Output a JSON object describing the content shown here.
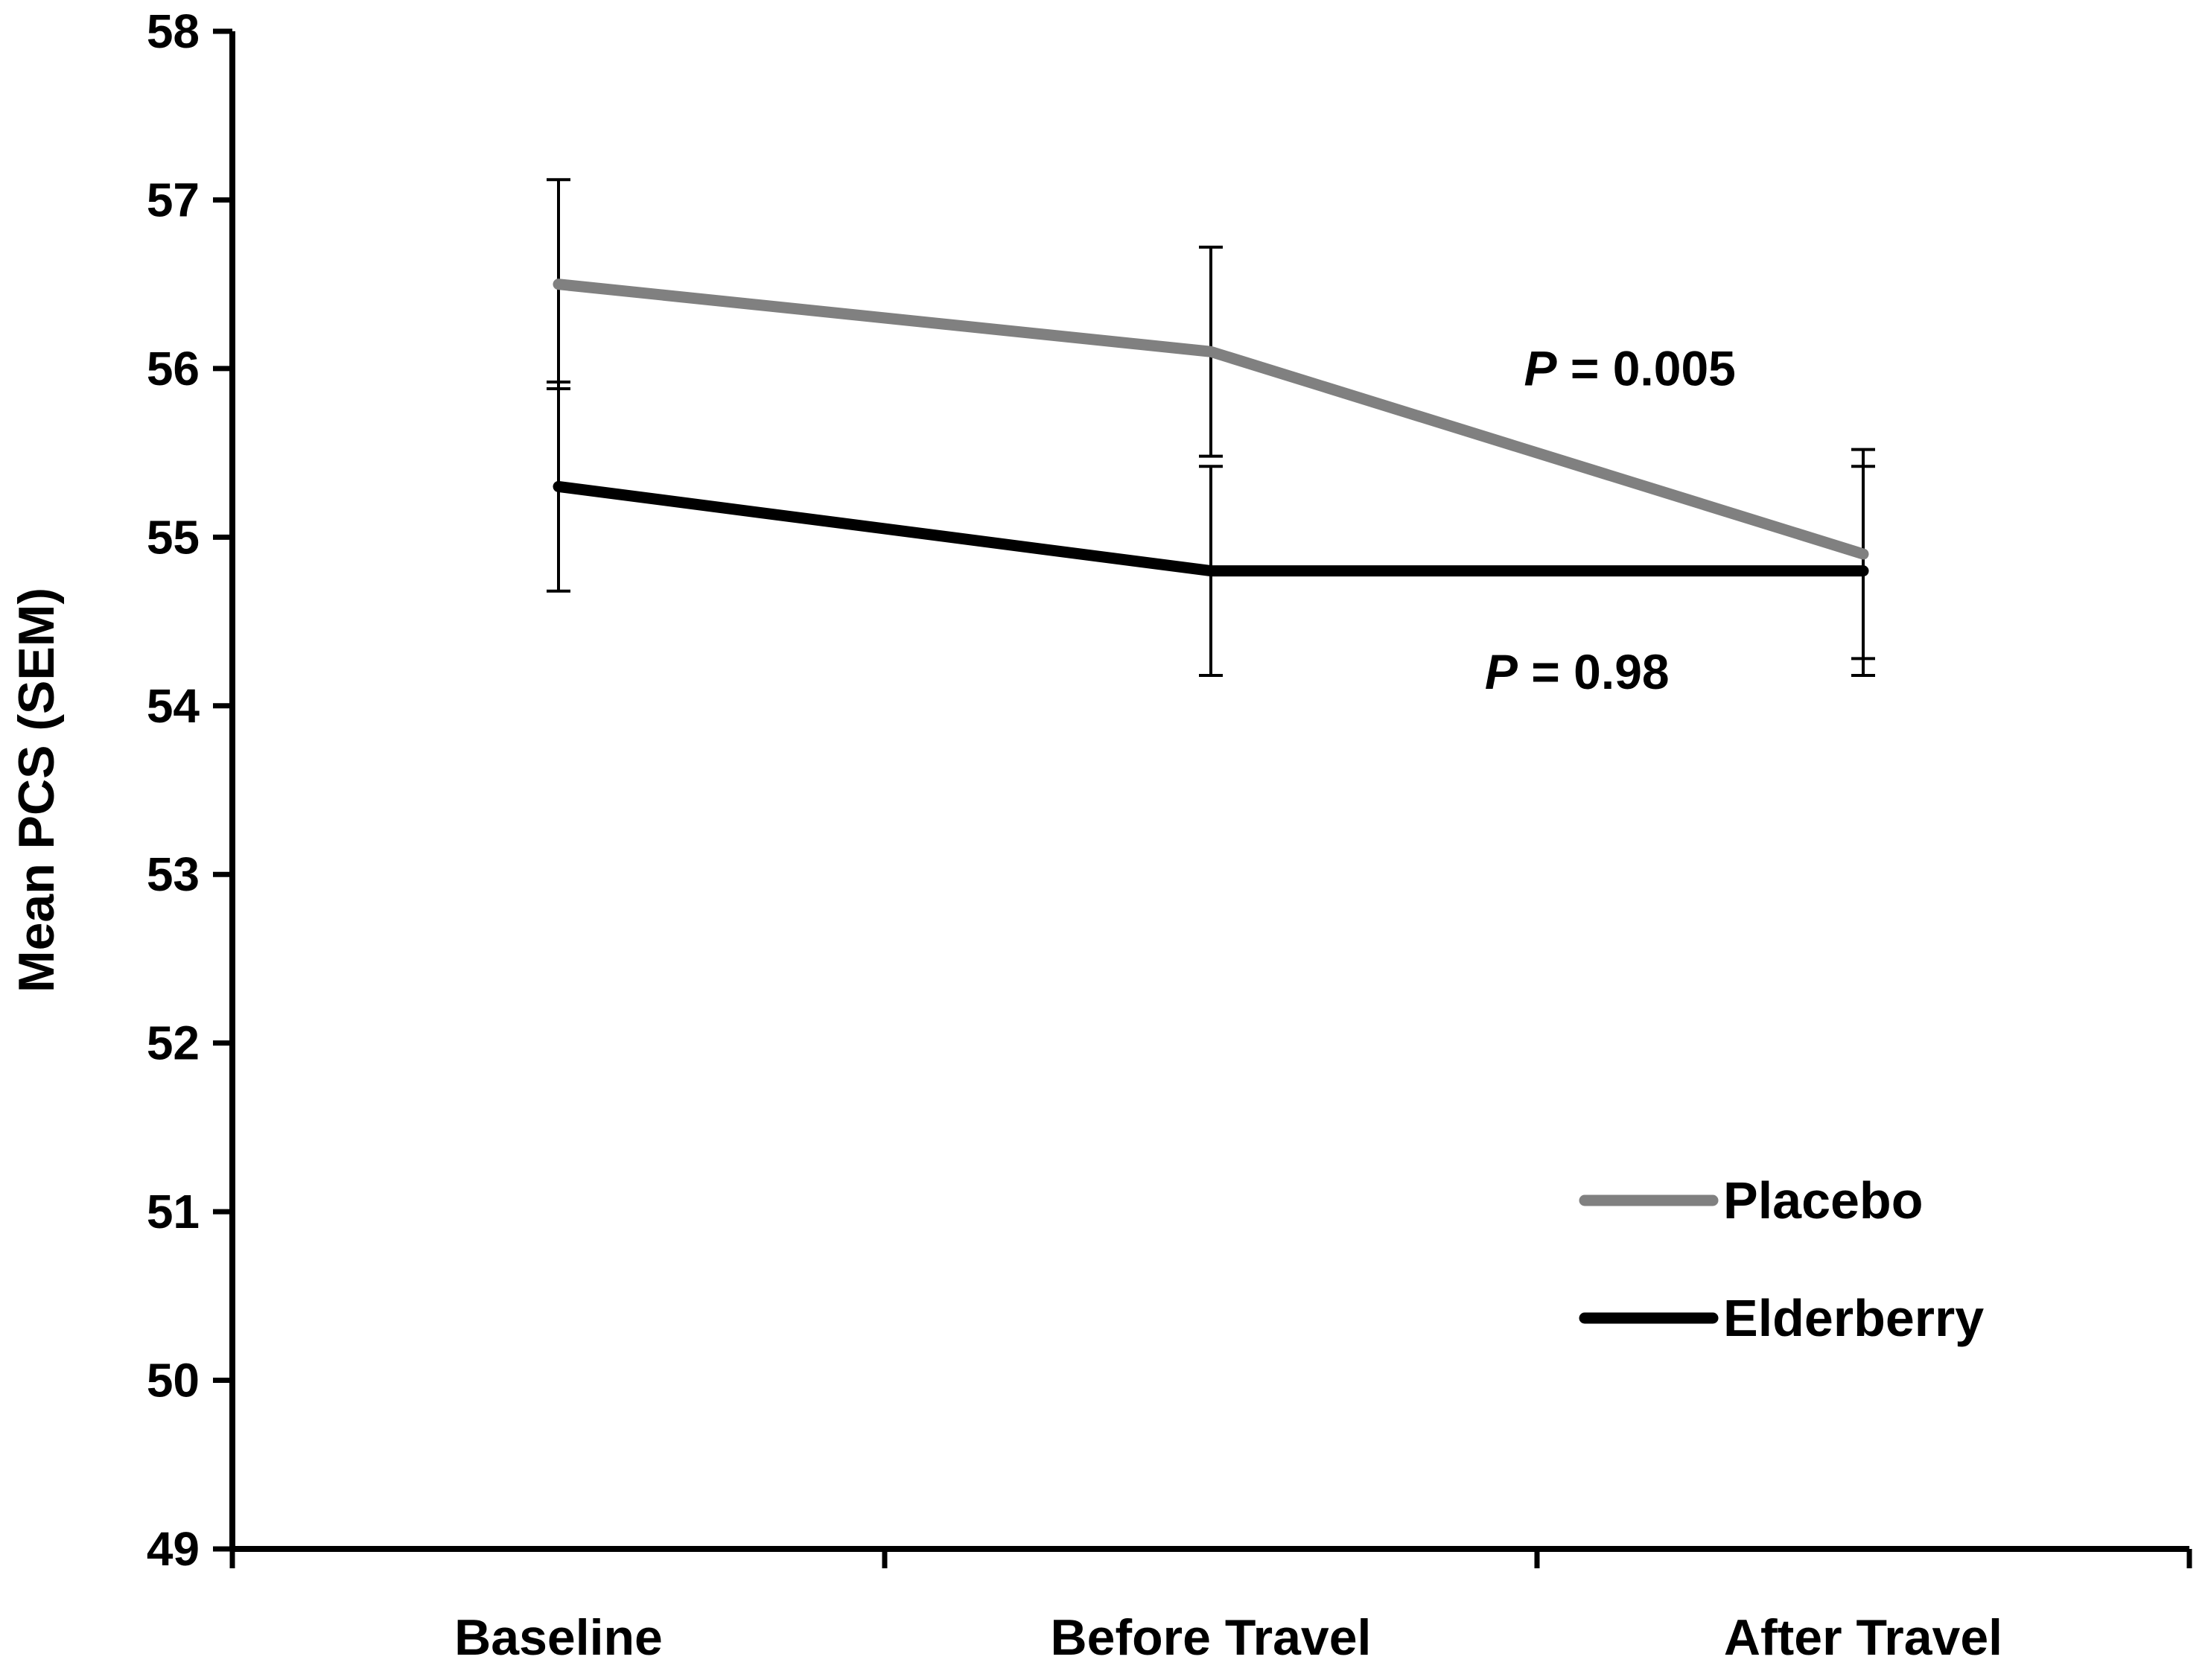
{
  "chart_data": {
    "type": "line",
    "ylabel": "Mean PCS (SEM)",
    "xlabel": "",
    "ylim": [
      49,
      58
    ],
    "yticks": [
      49,
      50,
      51,
      52,
      53,
      54,
      55,
      56,
      57,
      58
    ],
    "categories": [
      "Baseline",
      "Before Travel",
      "After Travel"
    ],
    "grid": false,
    "legend_position": "bottom-right",
    "series": [
      {
        "name": "Placebo",
        "color": "#808080",
        "values": [
          56.5,
          56.1,
          54.9
        ],
        "err_low": [
          55.88,
          55.48,
          54.28
        ],
        "err_high": [
          57.12,
          56.72,
          55.52
        ]
      },
      {
        "name": "Elderberry",
        "color": "#000000",
        "values": [
          55.3,
          54.8,
          54.8
        ],
        "err_low": [
          54.68,
          54.18,
          54.18
        ],
        "err_high": [
          55.92,
          55.42,
          55.42
        ]
      }
    ],
    "annotations": [
      {
        "prefix": "P",
        "text": " = 0.005",
        "x_category": 2,
        "y": 55.9,
        "dx": -0.52
      },
      {
        "prefix": "P",
        "text": " = 0.98",
        "x_category": 2,
        "y": 54.1,
        "dx": -0.58
      }
    ]
  }
}
